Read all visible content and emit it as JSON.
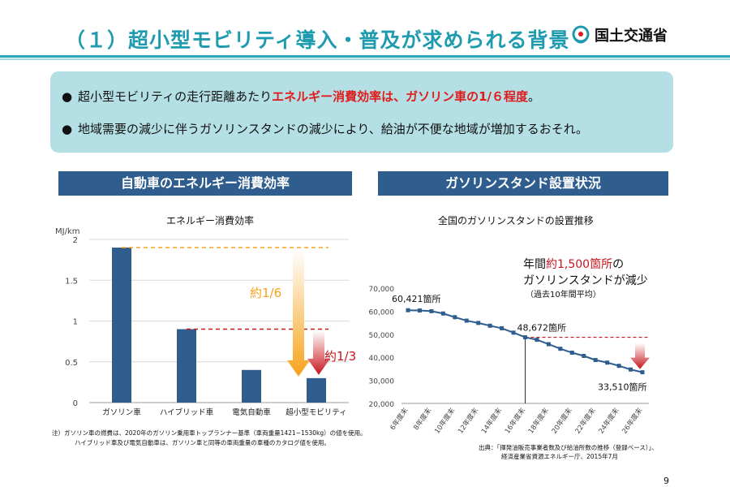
{
  "header": {
    "title": "（１）超小型モビリティ導入・普及が求められる背景",
    "logo_text": "国土交通省",
    "logo_icon": "mlit-logo-icon"
  },
  "info": {
    "bullet1_pre": "超小型モビリティの走行距離あたり",
    "bullet1_highlight": "エネルギー消費効率は、ガソリン車の1/６程度",
    "bullet1_post": "。",
    "bullet2": "地域需要の減少に伴うガソリンスタンドの減少により、給油が不便な地域が増加するおそれ。"
  },
  "left_section": {
    "header": "自動車のエネルギー消費効率"
  },
  "right_section": {
    "header": "ガソリンスタンド設置状況"
  },
  "colors": {
    "bar": "#2f5d8e",
    "orange": "#f7a21b",
    "red": "#c8161d",
    "teal": "#1f9bb0"
  },
  "chart_data": [
    {
      "type": "bar",
      "title": "エネルギー消費効率",
      "ylabel": "MJ/km",
      "categories": [
        "ガソリン車",
        "ハイブリッド車",
        "電気自動車",
        "超小型モビリティ"
      ],
      "values": [
        1.9,
        0.9,
        0.4,
        0.3
      ],
      "ylim": [
        0,
        2
      ],
      "yticks": [
        "0",
        "0.5",
        "1",
        "1.5",
        "2"
      ],
      "grid": true,
      "annotations": {
        "orange": "約1/6",
        "red": "約1/3"
      }
    },
    {
      "type": "line",
      "title": "全国のガソリンスタンドの設置推移",
      "x": [
        "6年度末",
        "7年度末",
        "8年度末",
        "9年度末",
        "10年度末",
        "11年度末",
        "12年度末",
        "13年度末",
        "14年度末",
        "15年度末",
        "16年度末",
        "17年度末",
        "18年度末",
        "19年度末",
        "20年度末",
        "21年度末",
        "22年度末",
        "23年度末",
        "24年度末",
        "25年度末",
        "26年度末"
      ],
      "xticks": [
        "6年度末",
        "8年度末",
        "10年度末",
        "12年度末",
        "14年度末",
        "16年度末",
        "18年度末",
        "20年度末",
        "22年度末",
        "24年度末",
        "26年度末"
      ],
      "values": [
        60421,
        60300,
        59990,
        59000,
        57400,
        55900,
        54900,
        53700,
        52600,
        50700,
        48672,
        47600,
        45700,
        43700,
        42000,
        40600,
        38800,
        37700,
        36300,
        34700,
        33510
      ],
      "ylim": [
        20000,
        70000
      ],
      "yticks": [
        "20,000",
        "30,000",
        "40,000",
        "50,000",
        "60,000",
        "70,000"
      ],
      "grid": false,
      "labels": {
        "start": "60,421箇所",
        "mid": "48,672箇所",
        "end": "33,510箇所"
      },
      "annotation_line1_pre": "年間",
      "annotation_line1_highlight": "約1,500箇所",
      "annotation_line1_post": "の",
      "annotation_line2": "ガソリンスタンドが減少",
      "annotation_line3": "（過去10年間平均）"
    }
  ],
  "footnote": {
    "line1": "注）ガソリン車の燃費は、2020年のガソリン乗用車トップランナー基準（車両重量1421~1530kg）の値を使用。",
    "line2": "ハイブリッド車及び電気自動車は、ガソリン車と同等の車両重量の車種のカタログ値を使用。"
  },
  "source": {
    "line1": "出典：「揮発油販売事業者数及び給油所数の推移（登録ベース）」、",
    "line2": "経済産業省資源エネルギー庁、2015年7月"
  },
  "page_number": "9"
}
